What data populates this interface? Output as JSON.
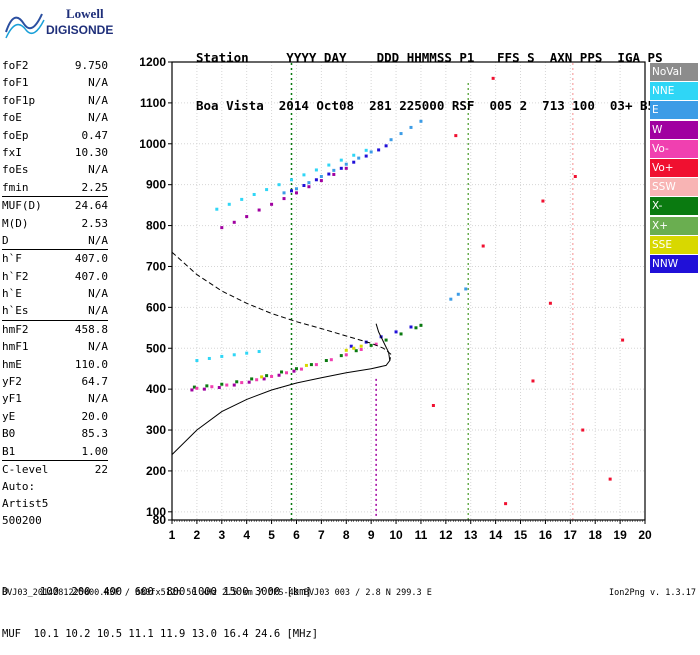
{
  "logo": {
    "line1": "Lowell",
    "line2": "DIGISONDE"
  },
  "header": {
    "row1": "Station     YYYY DAY    DDD HHMMSS P1   FFS S  AXN PPS  IGA PS",
    "row2": "Boa Vista  2014 Oct08  281 225000 RSF  005 2  713 100  03+ B5"
  },
  "params": [
    [
      [
        "foF2",
        "9.750"
      ],
      [
        "foF1",
        "N/A"
      ],
      [
        "foF1p",
        "N/A"
      ],
      [
        "foE",
        "N/A"
      ],
      [
        "foEp",
        "0.47"
      ],
      [
        "fxI",
        "10.30"
      ],
      [
        "foEs",
        "N/A"
      ],
      [
        "fmin",
        "2.25"
      ]
    ],
    [
      [
        "MUF(D)",
        "24.64"
      ],
      [
        "M(D)",
        "2.53"
      ],
      [
        "D",
        "N/A"
      ]
    ],
    [
      [
        "h`F",
        "407.0"
      ],
      [
        "h`F2",
        "407.0"
      ],
      [
        "h`E",
        "N/A"
      ],
      [
        "h`Es",
        "N/A"
      ]
    ],
    [
      [
        "hmF2",
        "458.8"
      ],
      [
        "hmF1",
        "N/A"
      ],
      [
        "hmE",
        "110.0"
      ],
      [
        "yF2",
        "64.7"
      ],
      [
        "yF1",
        "N/A"
      ],
      [
        "yE",
        "20.0"
      ],
      [
        "B0",
        "85.3"
      ],
      [
        "B1",
        "1.00"
      ]
    ],
    [
      [
        "C-level",
        "22"
      ]
    ]
  ],
  "auto": {
    "line1": "Auto:",
    "line2": "Artist5",
    "line3": "500200"
  },
  "legend": [
    {
      "label": "NoVal",
      "bg": "#8c8c8c",
      "fg": "#ffffff"
    },
    {
      "label": "NNE",
      "bg": "#2fd6f6",
      "fg": "#ffffff"
    },
    {
      "label": "E",
      "bg": "#3c9ce6",
      "fg": "#ffffff"
    },
    {
      "label": "W",
      "bg": "#a000a0",
      "fg": "#ffffff"
    },
    {
      "label": "Vo-",
      "bg": "#f040b0",
      "fg": "#ffffff"
    },
    {
      "label": "Vo+",
      "bg": "#f01030",
      "fg": "#ffffff"
    },
    {
      "label": "SSW",
      "bg": "#f8b4b4",
      "fg": "#ffffff"
    },
    {
      "label": "X-",
      "bg": "#0a7a10",
      "fg": "#ffffff"
    },
    {
      "label": "X+",
      "bg": "#6aae50",
      "fg": "#ffffff"
    },
    {
      "label": "SSE",
      "bg": "#d8d800",
      "fg": "#ffffff"
    },
    {
      "label": "NNW",
      "bg": "#2010d8",
      "fg": "#ffffff"
    }
  ],
  "chart_data": {
    "type": "scatter",
    "xlim": [
      1,
      20
    ],
    "ylim": [
      80,
      1200
    ],
    "x_ticks": [
      "1",
      "2",
      "3",
      "4",
      "5",
      "6",
      "7",
      "8",
      "9",
      "10",
      "11",
      "12",
      "13",
      "14",
      "15",
      "16",
      "17",
      "18",
      "19",
      "20"
    ],
    "y_ticks": [
      "80",
      "100",
      "200",
      "300",
      "400",
      "500",
      "600",
      "700",
      "800",
      "900",
      "1000",
      "1100",
      "1200"
    ],
    "y_tick_values": [
      80,
      100,
      200,
      300,
      400,
      500,
      600,
      700,
      800,
      900,
      1000,
      1100,
      1200
    ],
    "grid": true,
    "series": [
      {
        "color": "#0a7a10",
        "points": [
          [
            1.9,
            405
          ],
          [
            2.4,
            408
          ],
          [
            3.0,
            412
          ],
          [
            3.6,
            418
          ],
          [
            4.2,
            425
          ],
          [
            4.8,
            433
          ],
          [
            5.4,
            442
          ],
          [
            6.0,
            450
          ],
          [
            6.6,
            460
          ],
          [
            7.2,
            470
          ],
          [
            7.8,
            482
          ],
          [
            8.4,
            494
          ],
          [
            9.0,
            507
          ],
          [
            9.6,
            520
          ],
          [
            10.2,
            535
          ],
          [
            10.8,
            550
          ],
          [
            11.0,
            556
          ]
        ]
      },
      {
        "color": "#a000a0",
        "points": [
          [
            1.8,
            398
          ],
          [
            2.3,
            400
          ],
          [
            2.9,
            404
          ],
          [
            3.5,
            410
          ],
          [
            4.1,
            417
          ],
          [
            4.7,
            425
          ],
          [
            5.3,
            434
          ],
          [
            5.9,
            444
          ],
          [
            3.0,
            795
          ],
          [
            3.5,
            808
          ],
          [
            4.0,
            822
          ],
          [
            4.5,
            838
          ],
          [
            5.0,
            852
          ],
          [
            5.5,
            866
          ],
          [
            6.0,
            880
          ],
          [
            6.5,
            895
          ],
          [
            7.0,
            910
          ],
          [
            7.5,
            925
          ],
          [
            8.0,
            940
          ]
        ]
      },
      {
        "color": "#f040b0",
        "points": [
          [
            2.0,
            402
          ],
          [
            2.6,
            406
          ],
          [
            3.2,
            410
          ],
          [
            3.8,
            416
          ],
          [
            4.4,
            423
          ],
          [
            5.0,
            431
          ],
          [
            5.6,
            440
          ],
          [
            6.2,
            449
          ],
          [
            6.8,
            460
          ],
          [
            7.4,
            472
          ],
          [
            8.0,
            484
          ],
          [
            8.6,
            497
          ],
          [
            9.2,
            510
          ]
        ]
      },
      {
        "color": "#2fd6f6",
        "points": [
          [
            2.0,
            470
          ],
          [
            2.5,
            475
          ],
          [
            3.0,
            480
          ],
          [
            3.5,
            484
          ],
          [
            4.0,
            488
          ],
          [
            4.5,
            492
          ],
          [
            2.8,
            840
          ],
          [
            3.3,
            852
          ],
          [
            3.8,
            864
          ],
          [
            4.3,
            876
          ],
          [
            4.8,
            888
          ],
          [
            5.3,
            900
          ],
          [
            5.8,
            912
          ],
          [
            6.3,
            924
          ],
          [
            6.8,
            936
          ],
          [
            7.3,
            948
          ],
          [
            7.8,
            960
          ],
          [
            8.3,
            972
          ],
          [
            8.8,
            984
          ]
        ]
      },
      {
        "color": "#3c9ce6",
        "points": [
          [
            9.8,
            1010
          ],
          [
            10.2,
            1025
          ],
          [
            10.6,
            1040
          ],
          [
            11.0,
            1055
          ],
          [
            12.2,
            620
          ],
          [
            12.5,
            632
          ],
          [
            12.8,
            645
          ],
          [
            5.5,
            880
          ],
          [
            6.0,
            890
          ],
          [
            6.5,
            905
          ],
          [
            7.0,
            920
          ],
          [
            7.5,
            935
          ],
          [
            8.0,
            950
          ],
          [
            8.5,
            965
          ],
          [
            9.0,
            980
          ]
        ]
      },
      {
        "color": "#2010d8",
        "points": [
          [
            5.8,
            885
          ],
          [
            6.3,
            898
          ],
          [
            6.8,
            912
          ],
          [
            7.3,
            926
          ],
          [
            7.8,
            940
          ],
          [
            8.3,
            955
          ],
          [
            8.8,
            970
          ],
          [
            9.3,
            985
          ],
          [
            9.6,
            995
          ],
          [
            8.2,
            505
          ],
          [
            8.8,
            515
          ],
          [
            9.4,
            528
          ],
          [
            10.0,
            540
          ],
          [
            10.6,
            552
          ]
        ]
      },
      {
        "color": "#d8d800",
        "points": [
          [
            8.0,
            495
          ],
          [
            8.3,
            500
          ],
          [
            8.6,
            505
          ],
          [
            4.6,
            430
          ],
          [
            6.4,
            458
          ]
        ]
      },
      {
        "color": "#f01030",
        "points": [
          [
            13.5,
            750
          ],
          [
            15.5,
            420
          ],
          [
            17.5,
            300
          ],
          [
            18.6,
            180
          ],
          [
            12.4,
            1020
          ],
          [
            16.2,
            610
          ],
          [
            14.4,
            120
          ],
          [
            19.1,
            520
          ],
          [
            11.5,
            360
          ],
          [
            17.2,
            920
          ],
          [
            13.9,
            1160
          ],
          [
            15.9,
            860
          ]
        ]
      }
    ],
    "curves": [
      {
        "style": "dashed",
        "points": [
          [
            1.0,
            735
          ],
          [
            2.0,
            680
          ],
          [
            3.0,
            640
          ],
          [
            4.0,
            610
          ],
          [
            5.0,
            585
          ],
          [
            6.0,
            565
          ],
          [
            7.0,
            548
          ],
          [
            8.0,
            530
          ],
          [
            9.0,
            512
          ],
          [
            9.5,
            500
          ],
          [
            9.8,
            485
          ],
          [
            9.75,
            470
          ]
        ]
      },
      {
        "style": "solid",
        "points": [
          [
            1.0,
            240
          ],
          [
            2.0,
            300
          ],
          [
            3.0,
            345
          ],
          [
            4.0,
            375
          ],
          [
            5.0,
            398
          ],
          [
            6.0,
            415
          ],
          [
            7.0,
            428
          ],
          [
            8.0,
            440
          ],
          [
            9.0,
            450
          ],
          [
            9.6,
            458
          ],
          [
            9.75,
            470
          ],
          [
            9.7,
            490
          ],
          [
            9.5,
            515
          ],
          [
            9.3,
            540
          ],
          [
            9.2,
            560
          ]
        ]
      }
    ],
    "vertical_traces": [
      {
        "x": 5.8,
        "y": [
          80,
          1200
        ],
        "color": "#0a7a10"
      },
      {
        "x": 9.2,
        "y": [
          90,
          430
        ],
        "color": "#a000a0"
      },
      {
        "x": 12.9,
        "y": [
          80,
          1150
        ],
        "color": "#6aae50"
      },
      {
        "x": 17.1,
        "y": [
          80,
          1200
        ],
        "color": "#f8b4b4"
      }
    ]
  },
  "footer": {
    "row1": "D     100  200  400  600  800 1000 1500 3000 [km]",
    "row2": "MUF  10.1 10.2 10.5 11.1 11.9 13.0 16.4 24.6 [MHz]",
    "info": "BVJ03_2014281225000.RSF / 380fx512h 50 kHz 2.5 km / DPS-4D BVJ03 003 / 2.8 N 299.3 E",
    "version": "Ion2Png v. 1.3.17"
  }
}
